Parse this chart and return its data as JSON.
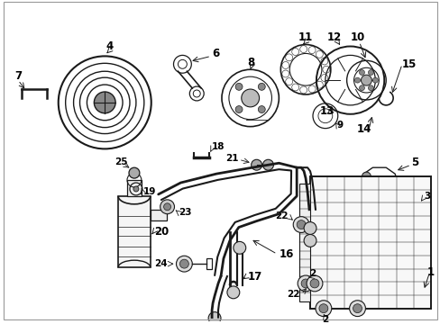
{
  "background_color": "#ffffff",
  "line_color": "#1a1a1a",
  "text_color": "#000000",
  "figsize": [
    4.89,
    3.6
  ],
  "dpi": 100,
  "font_size": 8.5
}
